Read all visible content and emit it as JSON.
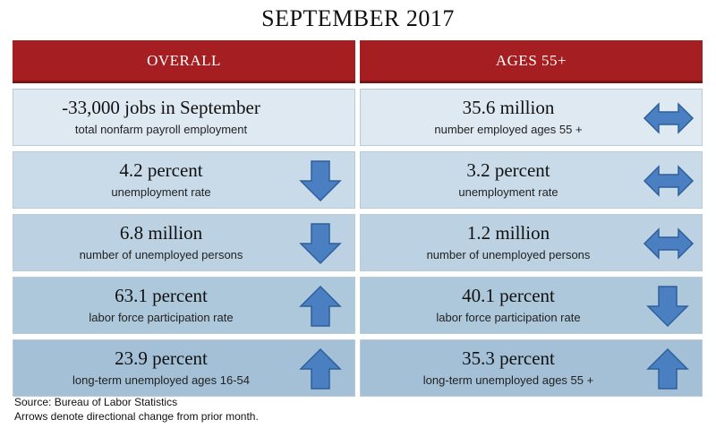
{
  "title": "SEPTEMBER 2017",
  "columns": {
    "overall": {
      "header": "OVERALL",
      "rows": [
        {
          "metric": "-33,000 jobs in September",
          "desc": "total nonfarm payroll employment",
          "direction": "none"
        },
        {
          "metric": "4.2 percent",
          "desc": "unemployment rate",
          "direction": "down"
        },
        {
          "metric": "6.8 million",
          "desc": "number of unemployed persons",
          "direction": "down"
        },
        {
          "metric": "63.1 percent",
          "desc": "labor force participation rate",
          "direction": "up"
        },
        {
          "metric": "23.9 percent",
          "desc": "long-term unemployed ages 16-54",
          "direction": "up"
        }
      ]
    },
    "ages55": {
      "header": "AGES 55+",
      "rows": [
        {
          "metric": "35.6 million",
          "desc": "number employed ages 55 +",
          "direction": "flat"
        },
        {
          "metric": "3.2 percent",
          "desc": "unemployment rate",
          "direction": "flat"
        },
        {
          "metric": "1.2 million",
          "desc": "number of unemployed persons",
          "direction": "flat"
        },
        {
          "metric": "40.1 percent",
          "desc": "labor force participation rate",
          "direction": "down"
        },
        {
          "metric": "35.3 percent",
          "desc": "long-term unemployed ages 55 +",
          "direction": "up"
        }
      ]
    }
  },
  "footer": {
    "source": "Source: Bureau of Labor Statistics",
    "note": "Arrows denote directional change from prior month."
  },
  "colors": {
    "header_bg": "#a51e22",
    "arrow_fill": "#4a7fc1",
    "arrow_stroke": "#2f5f9a"
  },
  "icons": {
    "up": "arrow-up-icon",
    "down": "arrow-down-icon",
    "flat": "double-arrow-horizontal-icon"
  }
}
